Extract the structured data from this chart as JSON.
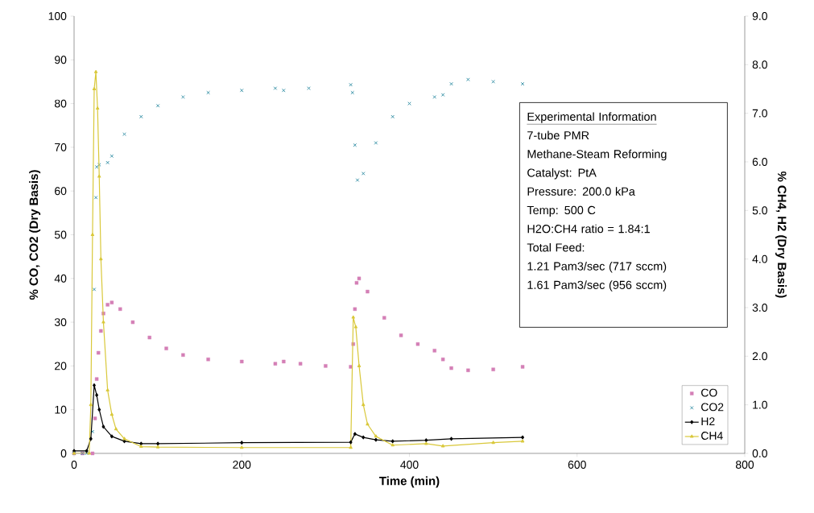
{
  "chart_data": {
    "type": "scatter",
    "xlabel": "Time (min)",
    "ylabel": "% CO, CO2 (Dry Basis)",
    "y2label": "% CH4, H2 (Dry Basis)",
    "xlim": [
      0,
      800
    ],
    "xticks": [
      0,
      200,
      400,
      600,
      800
    ],
    "ylim": [
      0,
      100
    ],
    "yticks": [
      0,
      10,
      20,
      30,
      40,
      50,
      60,
      70,
      80,
      90,
      100
    ],
    "y2lim": [
      0,
      9
    ],
    "y2ticks": [
      {
        "value": 0,
        "label": "0.0"
      },
      {
        "value": 1,
        "label": "1.0"
      },
      {
        "value": 2,
        "label": "2.0"
      },
      {
        "value": 3,
        "label": "3.0"
      },
      {
        "value": 4,
        "label": "4.0"
      },
      {
        "value": 5,
        "label": "5.0"
      },
      {
        "value": 6,
        "label": "6.0"
      },
      {
        "value": 7,
        "label": "7.0"
      },
      {
        "value": 8,
        "label": "8.0"
      },
      {
        "value": 9,
        "label": "9.0"
      }
    ],
    "legend": "bottom right",
    "annotations": [
      "Experimental Information",
      "7-tube PMR",
      "Methane-Steam Reforming",
      "Catalyst:  PtA",
      "Pressure: 200.0 kPa",
      "Temp: 500 C",
      "H2O:CH4 ratio = 1.84:1",
      "Total Feed:",
      "1.21 Pam3/sec (717 sccm)",
      "1.61 Pam3/sec (956 sccm)"
    ],
    "series": [
      {
        "name": "CO",
        "marker": "square",
        "color": "#d47fb6",
        "x": [
          0,
          10,
          22,
          25,
          27,
          29,
          32,
          35,
          40,
          45,
          55,
          70,
          90,
          110,
          130,
          160,
          200,
          240,
          250,
          270,
          300,
          330,
          333,
          335,
          337,
          340,
          350,
          370,
          390,
          410,
          430,
          440,
          450,
          470,
          500,
          535
        ],
        "values": [
          0,
          0,
          0,
          8,
          17,
          23,
          28,
          32,
          34,
          34.5,
          33,
          30,
          26.5,
          24,
          22.5,
          21.5,
          21,
          20.5,
          21,
          20.5,
          20,
          19.8,
          25,
          33,
          39,
          40,
          37,
          31,
          27,
          25,
          23.5,
          21.5,
          19.5,
          19,
          19.2,
          19.8
        ]
      },
      {
        "name": "CO2",
        "marker": "cross",
        "color": "#3a93a8",
        "x": [
          0,
          10,
          15,
          22,
          24,
          26,
          27,
          30,
          40,
          45,
          60,
          80,
          100,
          130,
          160,
          200,
          240,
          250,
          280,
          330,
          332,
          335,
          338,
          345,
          360,
          380,
          400,
          430,
          440,
          450,
          470,
          500,
          535
        ],
        "values": [
          0,
          0,
          0,
          5,
          37.5,
          58.5,
          65.5,
          66,
          66.5,
          68,
          73,
          77,
          79.5,
          81.5,
          82.5,
          83,
          83.5,
          83,
          83.5,
          84.3,
          82.5,
          70.5,
          62.5,
          64,
          71,
          77,
          80,
          81.5,
          82,
          84.5,
          85.5,
          85,
          84.5
        ]
      },
      {
        "name": "H2",
        "type": "line",
        "marker": "diamond",
        "axis": "y2",
        "color": "#000000",
        "x": [
          0,
          15,
          20,
          24,
          27,
          30,
          35,
          45,
          60,
          80,
          100,
          200,
          330,
          335,
          345,
          360,
          380,
          420,
          450,
          535
        ],
        "values": [
          0.05,
          0.05,
          0.3,
          1.4,
          1.2,
          0.9,
          0.55,
          0.35,
          0.25,
          0.2,
          0.2,
          0.22,
          0.23,
          0.4,
          0.33,
          0.28,
          0.25,
          0.27,
          0.3,
          0.33
        ]
      },
      {
        "name": "CH4",
        "type": "line",
        "marker": "triangle",
        "axis": "y2",
        "color": "#d9c83a",
        "x": [
          0,
          18,
          20,
          22,
          24,
          26,
          28,
          30,
          32,
          35,
          40,
          45,
          50,
          60,
          80,
          100,
          200,
          330,
          333,
          336,
          340,
          345,
          350,
          360,
          380,
          420,
          440,
          500,
          535
        ],
        "values": [
          0,
          0,
          1.0,
          4.5,
          7.5,
          7.85,
          7.1,
          5.7,
          4.0,
          2.7,
          1.3,
          0.8,
          0.5,
          0.3,
          0.14,
          0.13,
          0.12,
          0.12,
          2.8,
          2.6,
          1.8,
          1.0,
          0.6,
          0.35,
          0.17,
          0.2,
          0.15,
          0.22,
          0.25
        ]
      }
    ]
  }
}
